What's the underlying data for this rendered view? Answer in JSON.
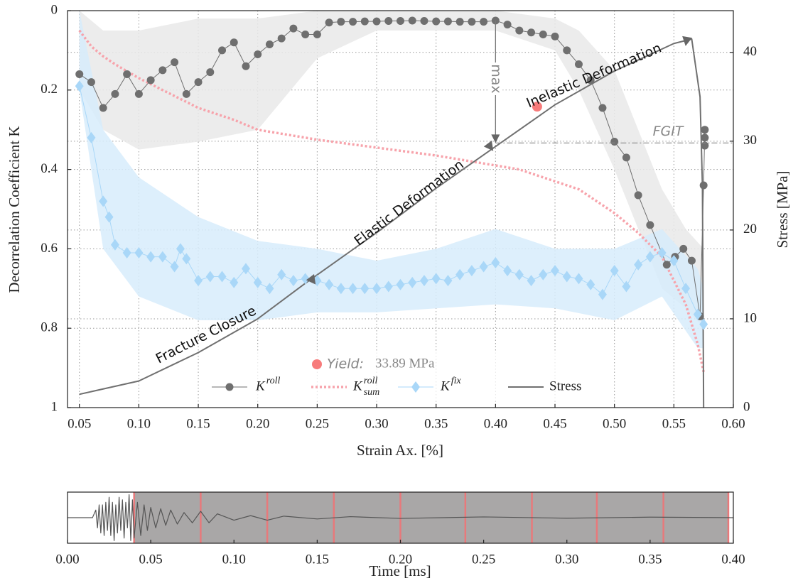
{
  "chart_data": [
    {
      "type": "line",
      "xlabel": "Strain Ax. [%]",
      "ylabel": "Decorrelation Coefficient K",
      "y2label": "Stress [MPa]",
      "xlim": [
        0.04,
        0.6
      ],
      "ylim": [
        0,
        1
      ],
      "y_inverted": true,
      "y2lim": [
        0,
        44.7
      ],
      "xticks": [
        0.05,
        {
          "value": 0.1,
          "label": "0.10"
        },
        0.15,
        {
          "value": 0.2,
          "label": "0.20"
        },
        0.25,
        {
          "value": 0.3,
          "label": "0.30"
        },
        0.35,
        {
          "value": 0.4,
          "label": "0.40"
        },
        0.45,
        {
          "value": 0.5,
          "label": "0.50"
        },
        0.55,
        {
          "value": 0.6,
          "label": "0.60"
        }
      ],
      "yticks": [
        0,
        0.2,
        0.4,
        0.6,
        0.8,
        1
      ],
      "y2ticks": [
        0,
        10,
        20,
        30,
        40
      ],
      "grid": true,
      "series": [
        {
          "name": "K",
          "sup": "roll",
          "color": "#6f6f6f",
          "marker": "circle",
          "band_color": "#e9e9e9",
          "x": [
            0.05,
            0.06,
            0.07,
            0.08,
            0.09,
            0.1,
            0.11,
            0.12,
            0.13,
            0.14,
            0.15,
            0.16,
            0.17,
            0.18,
            0.19,
            0.2,
            0.21,
            0.22,
            0.23,
            0.24,
            0.25,
            0.26,
            0.27,
            0.28,
            0.29,
            0.3,
            0.31,
            0.32,
            0.33,
            0.34,
            0.35,
            0.36,
            0.37,
            0.38,
            0.39,
            0.4,
            0.41,
            0.42,
            0.43,
            0.44,
            0.45,
            0.46,
            0.47,
            0.48,
            0.49,
            0.5,
            0.51,
            0.52,
            0.53,
            0.544,
            0.551,
            0.558,
            0.565,
            0.572,
            0.575,
            0.576,
            0.576,
            0.576
          ],
          "values": [
            0.16,
            0.18,
            0.245,
            0.21,
            0.16,
            0.21,
            0.175,
            0.15,
            0.13,
            0.21,
            0.18,
            0.155,
            0.1,
            0.08,
            0.14,
            0.11,
            0.085,
            0.07,
            0.045,
            0.06,
            0.06,
            0.03,
            0.028,
            0.028,
            0.027,
            0.027,
            0.026,
            0.026,
            0.025,
            0.026,
            0.027,
            0.027,
            0.028,
            0.028,
            0.028,
            0.025,
            0.035,
            0.05,
            0.055,
            0.06,
            0.065,
            0.1,
            0.135,
            0.175,
            0.245,
            0.33,
            0.37,
            0.465,
            0.54,
            0.64,
            0.62,
            0.6,
            0.63,
            0.77,
            0.44,
            0.3,
            0.32,
            0.34
          ],
          "band": {
            "x": [
              0.05,
              0.07,
              0.1,
              0.15,
              0.2,
              0.25,
              0.3,
              0.35,
              0.4,
              0.45,
              0.47,
              0.5,
              0.52,
              0.54,
              0.56,
              0.575
            ],
            "lo": [
              0,
              0.05,
              0.05,
              0.02,
              0.02,
              0,
              0,
              0,
              0,
              0.02,
              0.05,
              0.15,
              0.3,
              0.45,
              0.55,
              0.6
            ],
            "hi": [
              0.2,
              0.3,
              0.35,
              0.33,
              0.3,
              0.12,
              0.05,
              0.05,
              0.05,
              0.1,
              0.2,
              0.4,
              0.55,
              0.7,
              0.75,
              0.8
            ]
          }
        },
        {
          "name": "K",
          "sup": "roll",
          "sub": "sum",
          "color": "#f7a3ab",
          "style": "dotted",
          "x": [
            0.05,
            0.06,
            0.07,
            0.08,
            0.1,
            0.12,
            0.15,
            0.18,
            0.2,
            0.22,
            0.25,
            0.3,
            0.35,
            0.4,
            0.42,
            0.45,
            0.47,
            0.5,
            0.52,
            0.54,
            0.56,
            0.57,
            0.575
          ],
          "values": [
            0.05,
            0.09,
            0.115,
            0.135,
            0.17,
            0.2,
            0.245,
            0.275,
            0.3,
            0.31,
            0.325,
            0.345,
            0.365,
            0.39,
            0.4,
            0.43,
            0.45,
            0.51,
            0.56,
            0.62,
            0.74,
            0.84,
            0.91
          ]
        },
        {
          "name": "K",
          "sup": "fix",
          "color": "#a9d7f8",
          "marker": "diamond",
          "band_color": "#d7ecfc",
          "x": [
            0.05,
            0.06,
            0.07,
            0.075,
            0.08,
            0.09,
            0.1,
            0.11,
            0.12,
            0.13,
            0.135,
            0.14,
            0.15,
            0.16,
            0.17,
            0.18,
            0.19,
            0.2,
            0.21,
            0.22,
            0.23,
            0.24,
            0.25,
            0.26,
            0.27,
            0.28,
            0.29,
            0.3,
            0.31,
            0.32,
            0.33,
            0.34,
            0.35,
            0.36,
            0.37,
            0.38,
            0.39,
            0.4,
            0.41,
            0.42,
            0.43,
            0.44,
            0.45,
            0.46,
            0.47,
            0.48,
            0.49,
            0.5,
            0.51,
            0.52,
            0.53,
            0.54,
            0.55,
            0.56,
            0.57,
            0.575
          ],
          "values": [
            0.19,
            0.32,
            0.48,
            0.52,
            0.59,
            0.61,
            0.61,
            0.62,
            0.62,
            0.645,
            0.6,
            0.625,
            0.68,
            0.67,
            0.67,
            0.685,
            0.65,
            0.685,
            0.7,
            0.665,
            0.68,
            0.675,
            0.68,
            0.69,
            0.7,
            0.7,
            0.7,
            0.7,
            0.695,
            0.69,
            0.685,
            0.68,
            0.675,
            0.68,
            0.665,
            0.655,
            0.645,
            0.635,
            0.655,
            0.665,
            0.68,
            0.665,
            0.655,
            0.67,
            0.675,
            0.69,
            0.715,
            0.655,
            0.695,
            0.64,
            0.62,
            0.61,
            0.63,
            0.7,
            0.765,
            0.79
          ],
          "band": {
            "x": [
              0.05,
              0.07,
              0.1,
              0.15,
              0.2,
              0.25,
              0.3,
              0.35,
              0.4,
              0.45,
              0.5,
              0.54,
              0.57,
              0.575
            ],
            "lo": [
              0,
              0.3,
              0.42,
              0.52,
              0.58,
              0.6,
              0.63,
              0.6,
              0.55,
              0.6,
              0.6,
              0.55,
              0.65,
              0.7
            ],
            "hi": [
              0.2,
              0.6,
              0.72,
              0.78,
              0.78,
              0.76,
              0.76,
              0.75,
              0.74,
              0.75,
              0.78,
              0.72,
              0.85,
              0.85
            ]
          }
        },
        {
          "name": "Stress",
          "color": "#707070",
          "axis": "y2",
          "x": [
            0.05,
            0.1,
            0.15,
            0.2,
            0.24,
            0.3,
            0.35,
            0.4,
            0.45,
            0.5,
            0.55,
            0.565,
            0.572,
            0.574,
            0.575
          ],
          "values": [
            1.5,
            3,
            6.2,
            10,
            14,
            19.7,
            24.7,
            29.4,
            34.1,
            37.9,
            41,
            41.5,
            35,
            25,
            0
          ]
        }
      ],
      "annotations": [
        {
          "text": "Fracture Closure"
        },
        {
          "text": "Elastic Deformation"
        },
        {
          "text": "Inelastic Deformation"
        }
      ],
      "max_line": {
        "text": "max",
        "x": 0.4
      },
      "fgit": {
        "text": "FGIT",
        "value": 29.8
      },
      "yield": {
        "label": "Yield:",
        "value": 33.89,
        "value_label": "33.89 MPa",
        "x": 0.435,
        "color": "#f77b7b"
      }
    },
    {
      "type": "line",
      "xlabel": "Time [ms]",
      "xlim": [
        0,
        0.4
      ],
      "ylim": [
        -1,
        1
      ],
      "xticks": [
        {
          "value": 0,
          "label": "0.00"
        },
        0.05,
        {
          "value": 0.1,
          "label": "0.10"
        },
        0.15,
        {
          "value": 0.2,
          "label": "0.20"
        },
        0.25,
        {
          "value": 0.3,
          "label": "0.30"
        },
        0.35,
        {
          "value": 0.4,
          "label": "0.40"
        }
      ],
      "windows": [
        0.04,
        0.08,
        0.12,
        0.16,
        0.2,
        0.239,
        0.279,
        0.318,
        0.358,
        0.397
      ],
      "window_color": "#a9a7a7",
      "window_line_color": "#e8797b",
      "series": [
        {
          "color": "#555555",
          "x": [
            0,
            0.015,
            0.017,
            0.018,
            0.019,
            0.02,
            0.021,
            0.022,
            0.023,
            0.024,
            0.025,
            0.026,
            0.027,
            0.028,
            0.029,
            0.03,
            0.031,
            0.032,
            0.033,
            0.034,
            0.035,
            0.036,
            0.037,
            0.038,
            0.039,
            0.04,
            0.042,
            0.044,
            0.046,
            0.048,
            0.05,
            0.053,
            0.056,
            0.059,
            0.062,
            0.066,
            0.07,
            0.075,
            0.08,
            0.085,
            0.09,
            0.1,
            0.11,
            0.12,
            0.13,
            0.15,
            0.17,
            0.2,
            0.25,
            0.3,
            0.35,
            0.4
          ],
          "values": [
            0,
            0,
            0.3,
            -0.4,
            0.5,
            -0.6,
            0.5,
            -0.7,
            0.6,
            -0.5,
            0.8,
            -0.7,
            0.6,
            -0.9,
            0.5,
            -0.6,
            0.8,
            -0.5,
            0.7,
            -0.8,
            0.6,
            -0.4,
            0.9,
            -0.9,
            0.7,
            -0.8,
            0.6,
            -0.7,
            0.5,
            -0.5,
            0.4,
            -0.4,
            0.35,
            -0.3,
            0.3,
            -0.25,
            0.2,
            -0.2,
            0.25,
            -0.2,
            0.15,
            -0.1,
            0.08,
            -0.1,
            0.06,
            -0.05,
            0.04,
            -0.03,
            0.03,
            -0.02,
            0.02,
            0
          ]
        }
      ]
    }
  ]
}
